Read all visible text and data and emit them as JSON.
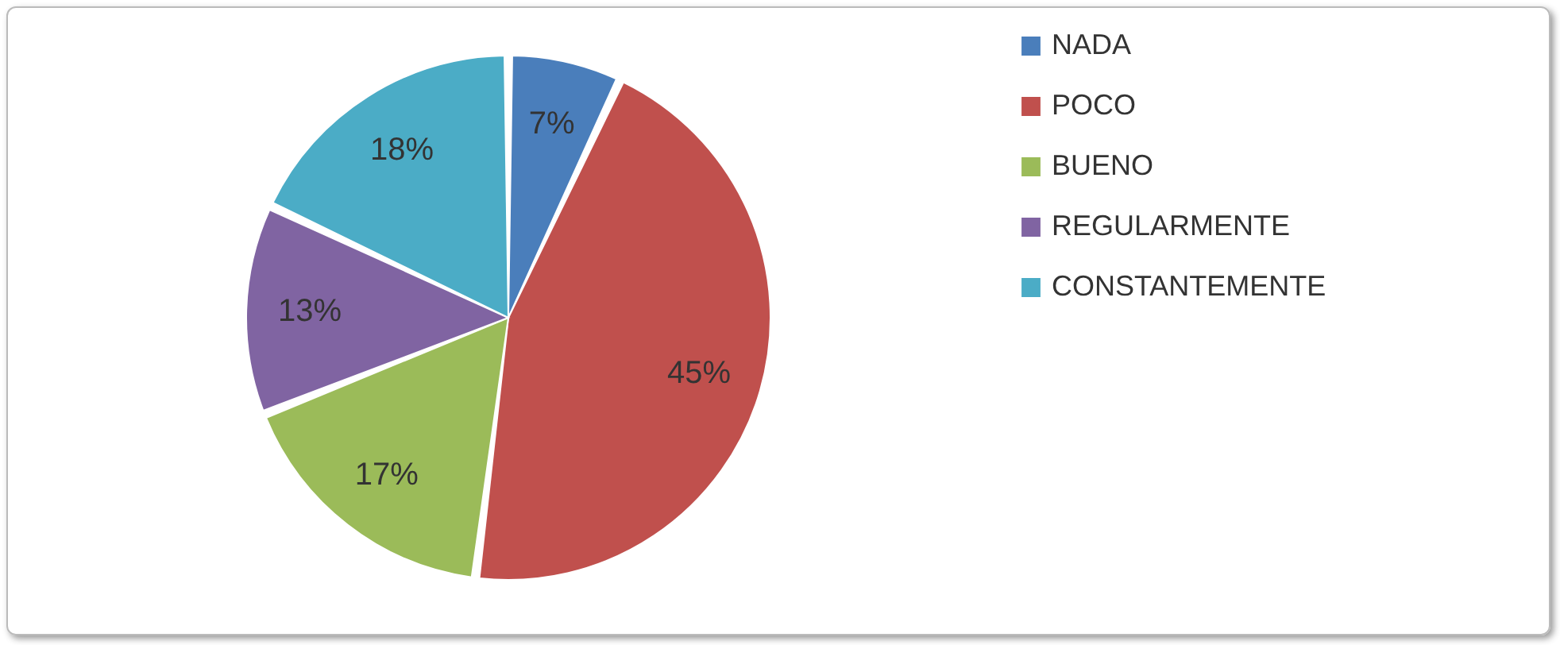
{
  "chart_data": {
    "type": "pie",
    "categories": [
      "NADA",
      "POCO",
      "BUENO",
      "REGULARMENTE",
      "CONSTANTEMENTE"
    ],
    "values": [
      7,
      45,
      17,
      13,
      18
    ],
    "colors": [
      "#4a7ebb",
      "#c0504d",
      "#9bbb59",
      "#8064a2",
      "#4bacc6"
    ],
    "value_labels": [
      "7%",
      "45%",
      "17%",
      "13%",
      "18%"
    ],
    "legend": "right"
  }
}
